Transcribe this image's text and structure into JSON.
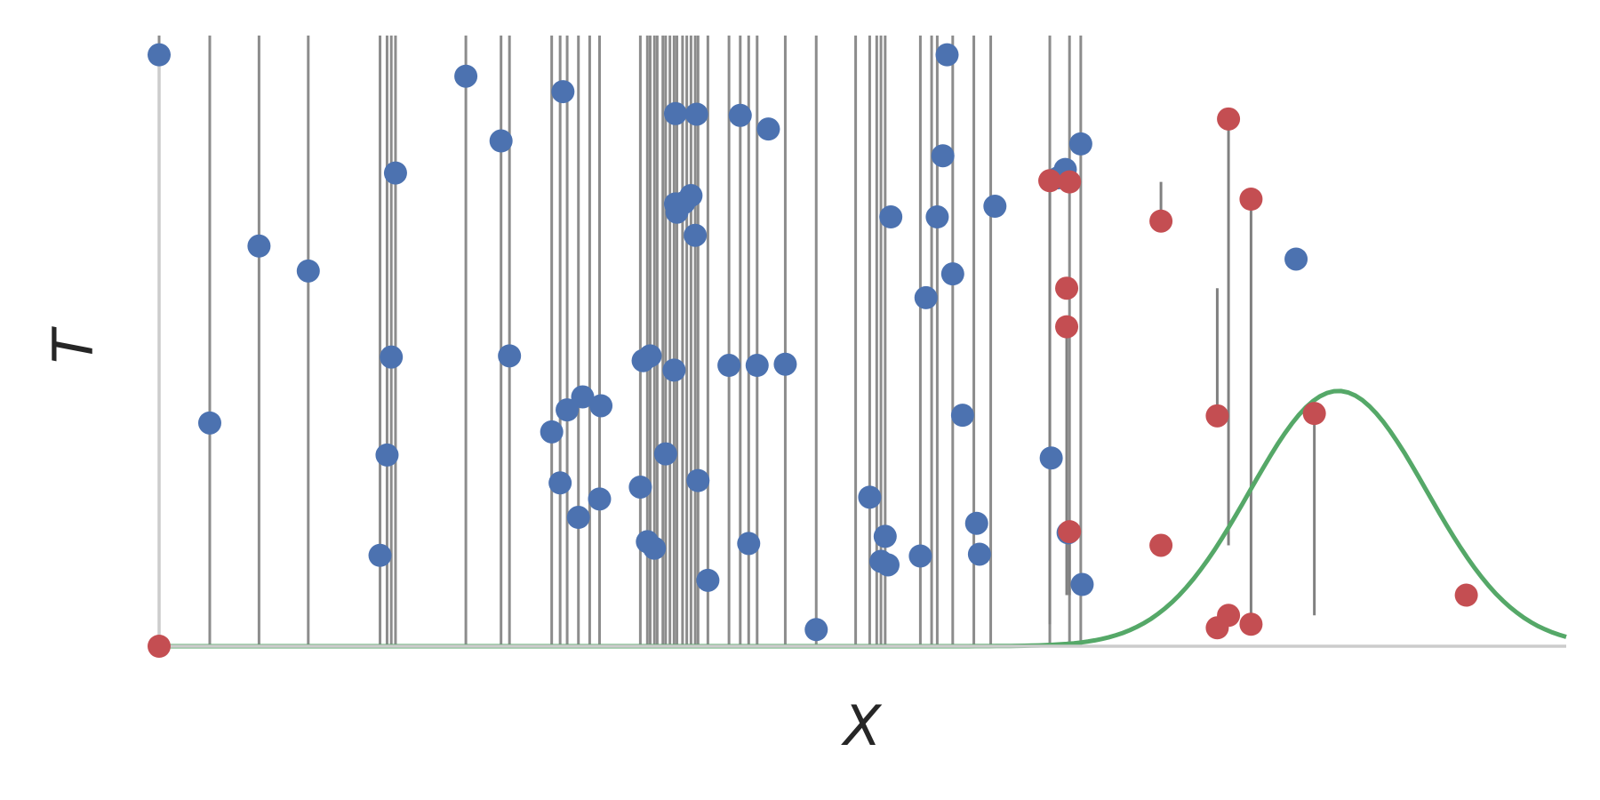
{
  "chart_data": {
    "type": "scatter",
    "title": "",
    "xlabel": "X",
    "ylabel": "T",
    "grid": false,
    "legend": "none",
    "xlim": [
      0,
      100
    ],
    "ylim": [
      0,
      100
    ],
    "colors": {
      "sample": "#4c72b0",
      "moved": "#c44e52",
      "stem": "#808080",
      "density": "#55a868",
      "axis": "#cccccc"
    },
    "stems": {
      "top": 100,
      "x": [
        0.0,
        3.6,
        7.1,
        10.6,
        15.7,
        16.2,
        16.5,
        16.8,
        21.8,
        24.3,
        24.9,
        27.9,
        28.5,
        29.0,
        29.8,
        30.6,
        31.3,
        34.2,
        34.7,
        34.9,
        35.2,
        35.4,
        35.8,
        36.0,
        36.3,
        36.6,
        36.8,
        37.2,
        37.5,
        37.8,
        38.1,
        38.3,
        39.0,
        40.5,
        41.3,
        41.9,
        42.5,
        44.5,
        46.7,
        49.5,
        50.5,
        51.0,
        51.3,
        51.6,
        54.1,
        54.9,
        55.3,
        56.4,
        57.9,
        59.1,
        63.3,
        64.7,
        65.5
      ],
      "values": [
        0.0,
        0.0,
        0.0,
        0.0,
        0.0,
        0.0,
        0.0,
        0.0,
        0.0,
        0.0,
        0.0,
        0.0,
        0.0,
        0.0,
        0.0,
        0.0,
        0.0,
        0.0,
        0.0,
        0.0,
        0.0,
        0.0,
        0.0,
        0.0,
        0.0,
        0.0,
        0.0,
        0.0,
        0.0,
        0.0,
        0.0,
        0.0,
        0.0,
        0.0,
        0.0,
        0.0,
        0.0,
        0.0,
        0.0,
        0.0,
        0.0,
        0.0,
        0.0,
        0.0,
        0.0,
        0.0,
        0.0,
        0.0,
        0.0,
        0.0,
        0.0,
        0.0,
        0.0
      ]
    },
    "series": [
      {
        "x": [
          0.0,
          3.6,
          7.1,
          10.6,
          15.7,
          16.2,
          16.5,
          16.8,
          21.8,
          24.3,
          24.9,
          27.9,
          28.5,
          28.7,
          29.0,
          29.8,
          30.1,
          31.3,
          31.4,
          34.2,
          34.4,
          34.7,
          34.9,
          35.2,
          36.0,
          36.6,
          36.7,
          36.8,
          36.7,
          37.3,
          37.8,
          38.1,
          38.3,
          38.2,
          39.0,
          40.5,
          41.3,
          41.9,
          42.5,
          43.3,
          44.5,
          46.7,
          50.5,
          51.3,
          51.6,
          51.8,
          52.0,
          54.1,
          54.5,
          55.3,
          55.7,
          56.4,
          57.1,
          58.1,
          59.4,
          58.3,
          63.4,
          64.4,
          65.5,
          65.6,
          63.9,
          64.6,
          80.8,
          56.0
        ],
        "y": [
          99.6,
          37.6,
          67.4,
          63.2,
          15.3,
          32.2,
          48.7,
          79.7,
          96.0,
          85.1,
          48.9,
          36.1,
          27.5,
          93.4,
          39.8,
          21.7,
          42.0,
          24.8,
          40.5,
          26.8,
          48.1,
          17.6,
          48.9,
          16.5,
          32.4,
          46.5,
          89.7,
          73.1,
          74.5,
          74.7,
          75.9,
          69.2,
          27.9,
          89.6,
          11.1,
          47.3,
          89.4,
          17.3,
          47.3,
          87.1,
          47.5,
          2.8,
          25.1,
          14.3,
          18.5,
          13.7,
          72.3,
          15.2,
          58.7,
          72.3,
          82.6,
          62.7,
          38.9,
          20.7,
          74.1,
          15.5,
          31.7,
          80.3,
          84.6,
          10.4,
          78.9,
          19.1,
          65.2,
          99.6
        ]
      },
      {
        "x": [
          71.2,
          75.2,
          76.0,
          77.6,
          82.1,
          63.3,
          64.5,
          64.7,
          0.0
        ],
        "y": [
          71.6,
          38.8,
          88.8,
          75.3,
          39.2,
          78.4,
          53.8,
          19.3,
          0.0
        ]
      },
      {
        "x": [
          64.7,
          64.5,
          71.2,
          75.2,
          76.0,
          77.6,
          92.9
        ],
        "y": [
          78.2,
          60.3,
          17.0,
          3.1,
          5.2,
          3.7,
          8.6
        ]
      }
    ],
    "density": {
      "mu": 83.8,
      "sigma": 6.3,
      "peak": 43,
      "xmax": 100
    }
  }
}
